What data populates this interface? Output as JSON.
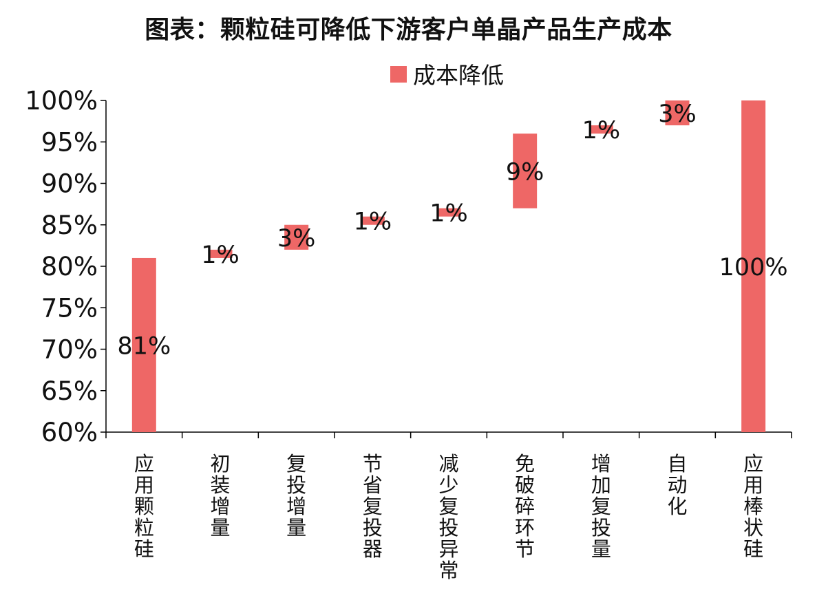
{
  "colors": {
    "bar": "#ee6766",
    "axis": "#000000",
    "text": "#111111",
    "background": "#ffffff"
  },
  "chart_data": {
    "type": "bar",
    "subtype": "waterfall",
    "title": "图表：颗粒硅可降低下游客户单晶产品生产成本",
    "legend": {
      "position": "top",
      "entries": [
        "成本降低"
      ]
    },
    "ylim": [
      60,
      100
    ],
    "yticks": [
      "60%",
      "65%",
      "70%",
      "75%",
      "80%",
      "85%",
      "90%",
      "95%",
      "100%"
    ],
    "ytick_values": [
      60,
      65,
      70,
      75,
      80,
      85,
      90,
      95,
      100
    ],
    "grid": false,
    "categories": [
      "应用颗粒硅",
      "初装增量",
      "复投增量",
      "节省复投器",
      "减少复投异常",
      "免破碎环节",
      "增加复投量",
      "自动化",
      "应用棒状硅"
    ],
    "bars": [
      {
        "category": "应用颗粒硅",
        "start": 60,
        "end": 81,
        "label": "81%"
      },
      {
        "category": "初装增量",
        "start": 81,
        "end": 82,
        "label": "1%"
      },
      {
        "category": "复投增量",
        "start": 82,
        "end": 85,
        "label": "3%"
      },
      {
        "category": "节省复投器",
        "start": 85,
        "end": 86,
        "label": "1%"
      },
      {
        "category": "减少复投异常",
        "start": 86,
        "end": 87,
        "label": "1%"
      },
      {
        "category": "免破碎环节",
        "start": 87,
        "end": 96,
        "label": "9%"
      },
      {
        "category": "增加复投量",
        "start": 96,
        "end": 97,
        "label": "1%"
      },
      {
        "category": "自动化",
        "start": 97,
        "end": 100,
        "label": "3%"
      },
      {
        "category": "应用棒状硅",
        "start": 60,
        "end": 100,
        "label": "100%"
      }
    ]
  }
}
